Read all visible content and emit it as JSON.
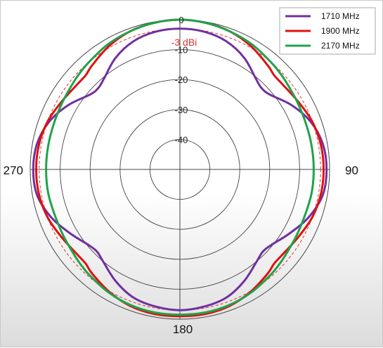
{
  "chart_data": {
    "type": "polar-line",
    "radial_unit": "dB",
    "radial_range": [
      -50,
      0
    ],
    "radial_ticks": [
      "0",
      "-10",
      "-20",
      "-30",
      "-40"
    ],
    "radial_tick_values": [
      0,
      -10,
      -20,
      -30,
      -40
    ],
    "angle_labels": {
      "top": "",
      "right": "90",
      "bottom": "180",
      "left": "270"
    },
    "reference": {
      "label": "-3 dBi",
      "value": -3
    },
    "legend_position": "top-right",
    "series": [
      {
        "name": "1710 MHz",
        "color": "#7030a0",
        "angles": [
          0,
          10,
          20,
          30,
          40,
          45,
          50,
          60,
          70,
          80,
          90,
          100,
          110,
          120,
          130,
          135,
          140,
          150,
          160,
          170,
          180
        ],
        "values": [
          -3,
          -3.3,
          -4.5,
          -7,
          -10.5,
          -11.5,
          -11,
          -7,
          -3.5,
          -1.5,
          -1,
          -1.5,
          -4,
          -7.5,
          -10.5,
          -11,
          -10,
          -7,
          -4.5,
          -3.5,
          -3
        ]
      },
      {
        "name": "1900 MHz",
        "color": "#e01010",
        "angles": [
          0,
          10,
          20,
          30,
          40,
          45,
          50,
          60,
          70,
          80,
          90,
          100,
          110,
          120,
          130,
          135,
          140,
          150,
          160,
          170,
          180
        ],
        "values": [
          0,
          -0.3,
          -1,
          -2.5,
          -4.5,
          -5.5,
          -5.5,
          -4.5,
          -3,
          -2.2,
          -2,
          -2.2,
          -3,
          -4.5,
          -5.5,
          -5.5,
          -4.5,
          -2.8,
          -1.5,
          -1,
          -1
        ]
      },
      {
        "name": "2170 MHz",
        "color": "#1ea34a",
        "angles": [
          0,
          10,
          20,
          30,
          40,
          45,
          50,
          60,
          70,
          80,
          90,
          100,
          110,
          120,
          130,
          135,
          140,
          150,
          160,
          170,
          180
        ],
        "values": [
          0,
          -0.3,
          -1,
          -1.8,
          -3,
          -3.5,
          -4,
          -4.8,
          -5.2,
          -5.3,
          -5.3,
          -5.3,
          -5.5,
          -5.2,
          -4.5,
          -4,
          -3.5,
          -2.5,
          -1.8,
          -1.5,
          -1.5
        ]
      }
    ]
  }
}
